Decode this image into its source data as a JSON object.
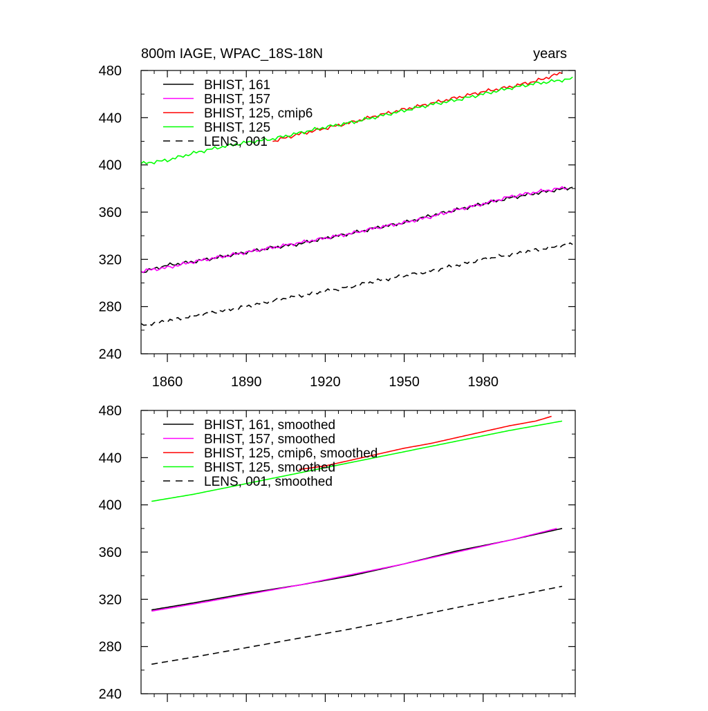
{
  "chart_data": [
    {
      "type": "line",
      "title_left": "800m IAGE, WPAC_18S-18N",
      "title_right": "years",
      "xlim": [
        1850,
        2015
      ],
      "ylim": [
        240,
        480
      ],
      "xticks": [
        1860,
        1890,
        1920,
        1950,
        1980
      ],
      "yticks": [
        240,
        280,
        320,
        360,
        400,
        440,
        480
      ],
      "x_tick_labels_visible": true,
      "legend_position": "top-left",
      "series": [
        {
          "name": "BHIST, 161",
          "color": "#000000",
          "dash": false,
          "x": [
            1850,
            1860,
            1870,
            1880,
            1890,
            1900,
            1910,
            1920,
            1930,
            1940,
            1950,
            1960,
            1970,
            1980,
            1990,
            2000,
            2014
          ],
          "y": [
            309,
            315,
            318,
            322,
            326,
            330,
            333,
            338,
            342,
            347,
            351,
            357,
            362,
            367,
            372,
            376,
            381
          ]
        },
        {
          "name": "BHIST, 157",
          "color": "#ff00ff",
          "dash": false,
          "x": [
            1850,
            1860,
            1870,
            1880,
            1890,
            1900,
            1910,
            1920,
            1930,
            1940,
            1950,
            1960,
            1970,
            1980,
            1990,
            2000,
            2012
          ],
          "y": [
            310,
            313,
            318,
            322,
            326,
            330,
            334,
            338,
            342,
            347,
            351,
            356,
            362,
            367,
            373,
            377,
            381
          ]
        },
        {
          "name": "BHIST, 125, cmip6",
          "color": "#ff0000",
          "dash": false,
          "x": [
            1900,
            1910,
            1920,
            1930,
            1940,
            1950,
            1960,
            1970,
            1980,
            1990,
            2000,
            2010
          ],
          "y": [
            420,
            426,
            431,
            436,
            442,
            447,
            452,
            457,
            462,
            466,
            471,
            478
          ]
        },
        {
          "name": "BHIST, 125",
          "color": "#00ff00",
          "dash": false,
          "x": [
            1850,
            1860,
            1870,
            1880,
            1890,
            1900,
            1910,
            1920,
            1930,
            1940,
            1950,
            1960,
            1970,
            1980,
            1990,
            2000,
            2014
          ],
          "y": [
            401,
            404,
            410,
            415,
            419,
            422,
            427,
            432,
            436,
            441,
            446,
            451,
            455,
            460,
            465,
            469,
            473
          ]
        },
        {
          "name": "LENS, 001",
          "color": "#000000",
          "dash": true,
          "x": [
            1850,
            1860,
            1870,
            1880,
            1890,
            1900,
            1910,
            1920,
            1930,
            1940,
            1950,
            1960,
            1970,
            1980,
            1990,
            2000,
            2014
          ],
          "y": [
            264,
            268,
            272,
            276,
            280,
            285,
            289,
            293,
            297,
            302,
            306,
            310,
            315,
            320,
            324,
            328,
            333
          ]
        }
      ]
    },
    {
      "type": "line",
      "xlim": [
        1850,
        2015
      ],
      "ylim": [
        240,
        480
      ],
      "xticks": [
        1860,
        1890,
        1920,
        1950,
        1980
      ],
      "yticks": [
        240,
        280,
        320,
        360,
        400,
        440,
        480
      ],
      "x_tick_labels_visible": false,
      "legend_position": "top-left",
      "series": [
        {
          "name": "BHIST, 161, smoothed",
          "color": "#000000",
          "dash": false,
          "x": [
            1854,
            1870,
            1890,
            1910,
            1930,
            1950,
            1970,
            1990,
            2010
          ],
          "y": [
            311,
            317,
            325,
            332,
            340,
            350,
            361,
            370,
            380
          ]
        },
        {
          "name": "BHIST, 157, smoothed",
          "color": "#ff00ff",
          "dash": false,
          "x": [
            1854,
            1870,
            1890,
            1910,
            1930,
            1950,
            1970,
            1990,
            2008
          ],
          "y": [
            310,
            316,
            324,
            332,
            341,
            350,
            360,
            370,
            380
          ]
        },
        {
          "name": "BHIST, 125, cmip6, smoothed",
          "color": "#ff0000",
          "dash": false,
          "x": [
            1910,
            1920,
            1930,
            1940,
            1950,
            1960,
            1970,
            1980,
            1990,
            2000,
            2006
          ],
          "y": [
            430,
            433,
            438,
            443,
            448,
            452,
            457,
            462,
            467,
            471,
            475
          ]
        },
        {
          "name": "BHIST, 125, smoothed",
          "color": "#00ff00",
          "dash": false,
          "x": [
            1854,
            1870,
            1890,
            1910,
            1930,
            1950,
            1970,
            1990,
            2010
          ],
          "y": [
            403,
            409,
            418,
            427,
            436,
            445,
            454,
            463,
            471
          ]
        },
        {
          "name": "LENS, 001, smoothed",
          "color": "#000000",
          "dash": true,
          "x": [
            1854,
            1870,
            1890,
            1910,
            1930,
            1950,
            1970,
            1990,
            2010
          ],
          "y": [
            265,
            271,
            279,
            287,
            295,
            304,
            313,
            322,
            331
          ]
        }
      ]
    }
  ]
}
